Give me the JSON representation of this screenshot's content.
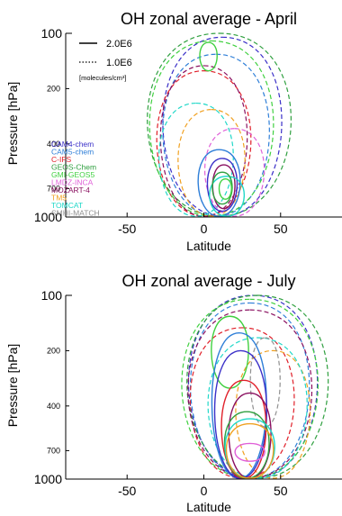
{
  "chart_data": [
    {
      "type": "contour",
      "title": "OH zonal average - April",
      "xlabel": "Latitude",
      "ylabel": "Pressure [hPa]",
      "xlim": [
        -90,
        90
      ],
      "xticks": [
        "-50",
        "0",
        "50"
      ],
      "xtick_values": [
        -50,
        0,
        50
      ],
      "y_scale": "log",
      "ylim": [
        1000,
        100
      ],
      "yticks_major": [
        "100",
        "1000"
      ],
      "yticks_minor": [
        "200",
        "400",
        "700"
      ],
      "yticks_major_values": [
        100,
        1000
      ],
      "yticks_minor_values": [
        200,
        400,
        700
      ],
      "line_legend": [
        {
          "style": "solid",
          "label": "2.0E6"
        },
        {
          "style": "dotted",
          "label": "1.0E6"
        }
      ],
      "units": "[molecules/cm³]",
      "models": [
        "CAM4-chem",
        "CAM5-chem",
        "C-IFS",
        "GEOS-Chem",
        "GMI-GEOS5",
        "LMDZ-INCA",
        "MOZART-4",
        "TM5",
        "TOMCAT",
        "SMHI-MATCH"
      ]
    },
    {
      "type": "contour",
      "title": "OH zonal average - July",
      "xlabel": "Latitude",
      "ylabel": "Pressure [hPa]",
      "xlim": [
        -90,
        90
      ],
      "xticks": [
        "-50",
        "0",
        "50"
      ],
      "xtick_values": [
        -50,
        0,
        50
      ],
      "y_scale": "log",
      "ylim": [
        1000,
        100
      ],
      "yticks_major": [
        "100",
        "1000"
      ],
      "yticks_minor": [
        "200",
        "400",
        "700"
      ],
      "yticks_major_values": [
        100,
        1000
      ],
      "yticks_minor_values": [
        200,
        400,
        700
      ]
    }
  ],
  "models": [
    {
      "name": "CAM4-chem",
      "color": "#3a2fc8"
    },
    {
      "name": "CAM5-chem",
      "color": "#2f7fd8"
    },
    {
      "name": "C-IFS",
      "color": "#e0202a"
    },
    {
      "name": "GEOS-Chem",
      "color": "#30a040"
    },
    {
      "name": "GMI-GEOS5",
      "color": "#40d040"
    },
    {
      "name": "LMDZ-INCA",
      "color": "#e060d8"
    },
    {
      "name": "MOZART-4",
      "color": "#8a1060"
    },
    {
      "name": "TM5",
      "color": "#f0a020"
    },
    {
      "name": "TOMCAT",
      "color": "#20d8c8"
    },
    {
      "name": "SMHI-MATCH",
      "color": "#909090"
    }
  ],
  "contours": [
    [
      {
        "model": 0,
        "style": "dashed",
        "c": [
          12,
          400
        ],
        "rx": 48,
        "p": [
          105,
          990
        ]
      },
      {
        "model": 1,
        "style": "dashed",
        "c": [
          8,
          400
        ],
        "rx": 43,
        "p": [
          130,
          990
        ]
      },
      {
        "model": 2,
        "style": "dashed",
        "c": [
          0,
          420
        ],
        "rx": 38,
        "p": [
          160,
          990
        ]
      },
      {
        "model": 3,
        "style": "dashed",
        "c": [
          10,
          400
        ],
        "rx": 58,
        "p": [
          100,
          990
        ]
      },
      {
        "model": 4,
        "style": "dashed",
        "c": [
          5,
          400
        ],
        "rx": 50,
        "p": [
          110,
          990
        ]
      },
      {
        "model": 5,
        "style": "dashed",
        "c": [
          20,
          550
        ],
        "rx": 24,
        "p": [
          330,
          990
        ]
      },
      {
        "model": 6,
        "style": "dashed",
        "c": [
          0,
          420
        ],
        "rx": 35,
        "p": [
          150,
          990
        ]
      },
      {
        "model": 7,
        "style": "dashed",
        "c": [
          5,
          420
        ],
        "rx": 27,
        "p": [
          260,
          990
        ]
      },
      {
        "model": 8,
        "style": "dashed",
        "c": [
          -5,
          460
        ],
        "rx": 30,
        "p": [
          240,
          990
        ]
      },
      {
        "model": 4,
        "style": "solid",
        "c": [
          3,
          130
        ],
        "rx": 7,
        "p": [
          112,
          160
        ]
      },
      {
        "model": 1,
        "style": "solid",
        "c": [
          10,
          620
        ],
        "rx": 17,
        "p": [
          430,
          990
        ]
      },
      {
        "model": 0,
        "style": "solid",
        "c": [
          12,
          650
        ],
        "rx": 12,
        "p": [
          480,
          930
        ]
      },
      {
        "model": 6,
        "style": "solid",
        "c": [
          13,
          680
        ],
        "rx": 9,
        "p": [
          520,
          900
        ]
      },
      {
        "model": 8,
        "style": "solid",
        "c": [
          15,
          720
        ],
        "rx": 14,
        "p": [
          600,
          990
        ]
      },
      {
        "model": 3,
        "style": "solid",
        "c": [
          12,
          690
        ],
        "rx": 8,
        "p": [
          570,
          850
        ]
      },
      {
        "model": 4,
        "style": "solid",
        "c": [
          14,
          700
        ],
        "rx": 5,
        "p": [
          620,
          800
        ]
      }
    ],
    [
      {
        "model": 0,
        "style": "dashed",
        "c": [
          32,
          330
        ],
        "rx": 52,
        "p": [
          100,
          990
        ]
      },
      {
        "model": 1,
        "style": "dashed",
        "c": [
          30,
          340
        ],
        "rx": 48,
        "p": [
          110,
          990
        ]
      },
      {
        "model": 2,
        "style": "dashed",
        "c": [
          25,
          380
        ],
        "rx": 42,
        "p": [
          150,
          990
        ]
      },
      {
        "model": 3,
        "style": "dashed",
        "c": [
          35,
          320
        ],
        "rx": 57,
        "p": [
          100,
          990
        ]
      },
      {
        "model": 4,
        "style": "dashed",
        "c": [
          30,
          330
        ],
        "rx": 55,
        "p": [
          105,
          990
        ]
      },
      {
        "model": 6,
        "style": "dashed",
        "c": [
          30,
          330
        ],
        "rx": 50,
        "p": [
          120,
          990
        ]
      },
      {
        "model": 7,
        "style": "dashed",
        "c": [
          45,
          450
        ],
        "rx": 30,
        "p": [
          200,
          990
        ]
      },
      {
        "model": 8,
        "style": "dashed",
        "c": [
          35,
          400
        ],
        "rx": 40,
        "p": [
          170,
          990
        ]
      },
      {
        "model": 9,
        "style": "dashed",
        "c": [
          40,
          300
        ],
        "rx": 12,
        "p": [
          170,
          520
        ]
      },
      {
        "model": 4,
        "style": "solid",
        "c": [
          17,
          190
        ],
        "rx": 15,
        "p": [
          130,
          320
        ]
      },
      {
        "model": 1,
        "style": "solid",
        "c": [
          23,
          420
        ],
        "rx": 22,
        "p": [
          160,
          990
        ]
      },
      {
        "model": 0,
        "style": "solid",
        "c": [
          24,
          450
        ],
        "rx": 21,
        "p": [
          200,
          990
        ]
      },
      {
        "model": 2,
        "style": "solid",
        "c": [
          26,
          520
        ],
        "rx": 18,
        "p": [
          290,
          990
        ]
      },
      {
        "model": 6,
        "style": "solid",
        "c": [
          30,
          600
        ],
        "rx": 17,
        "p": [
          340,
          990
        ]
      },
      {
        "model": 3,
        "style": "solid",
        "c": [
          28,
          650
        ],
        "rx": 18,
        "p": [
          430,
          990
        ]
      },
      {
        "model": 8,
        "style": "solid",
        "c": [
          30,
          680
        ],
        "rx": 20,
        "p": [
          470,
          990
        ]
      },
      {
        "model": 7,
        "style": "solid",
        "c": [
          30,
          700
        ],
        "rx": 19,
        "p": [
          500,
          990
        ]
      },
      {
        "model": 5,
        "style": "solid",
        "c": [
          30,
          720
        ],
        "rx": 12,
        "p": [
          640,
          800
        ]
      }
    ]
  ]
}
